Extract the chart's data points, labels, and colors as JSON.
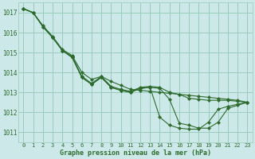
{
  "bg_color": "#cce8e8",
  "grid_color": "#99ccbb",
  "line_color": "#2d6b2d",
  "title": "Graphe pression niveau de la mer (hPa)",
  "xlim": [
    -0.5,
    23.5
  ],
  "ylim": [
    1010.5,
    1017.5
  ],
  "yticks": [
    1011,
    1012,
    1013,
    1014,
    1015,
    1016,
    1017
  ],
  "xticks": [
    0,
    1,
    2,
    3,
    4,
    5,
    6,
    7,
    8,
    9,
    10,
    11,
    12,
    13,
    14,
    15,
    16,
    17,
    18,
    19,
    20,
    21,
    22,
    23
  ],
  "series": [
    [
      1017.2,
      1017.0,
      1016.3,
      1015.75,
      1015.1,
      1014.8,
      1013.8,
      1013.45,
      1013.8,
      1013.3,
      1013.15,
      1013.05,
      1013.25,
      1013.3,
      1013.25,
      1013.0,
      1012.9,
      1012.7,
      1012.65,
      1012.6,
      1012.6,
      1012.6,
      1012.55,
      1012.5
    ],
    [
      1017.2,
      1017.0,
      1016.3,
      1015.75,
      1015.1,
      1014.75,
      1013.75,
      1013.4,
      1013.75,
      1013.25,
      1013.1,
      1013.0,
      1013.2,
      1013.25,
      1013.2,
      1012.65,
      1011.45,
      1011.35,
      1011.2,
      1011.2,
      1011.5,
      1012.2,
      1012.35,
      1012.5
    ],
    [
      1017.2,
      1017.0,
      1016.3,
      1015.75,
      1015.1,
      1014.75,
      1013.75,
      1013.4,
      1013.75,
      1013.25,
      1013.1,
      1013.0,
      1013.2,
      1013.25,
      1011.75,
      1011.35,
      1011.2,
      1011.15,
      1011.15,
      1011.5,
      1012.15,
      1012.3,
      1012.4,
      1012.5
    ],
    [
      1017.2,
      1017.0,
      1016.35,
      1015.8,
      1015.15,
      1014.85,
      1014.0,
      1013.65,
      1013.8,
      1013.55,
      1013.35,
      1013.15,
      1013.1,
      1013.05,
      1013.0,
      1012.95,
      1012.9,
      1012.85,
      1012.8,
      1012.75,
      1012.7,
      1012.65,
      1012.6,
      1012.5
    ]
  ]
}
